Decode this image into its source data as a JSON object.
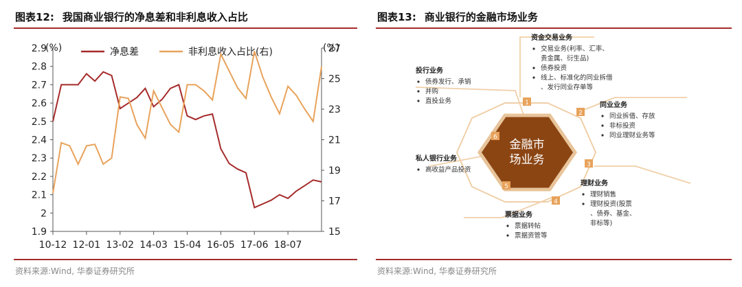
{
  "left_panel": {
    "figure_number": "图表12:",
    "figure_title": "我国商业银行的净息差和非利息收入占比",
    "source": "资料来源:Wind, 华泰证券研究所"
  },
  "right_panel": {
    "figure_number": "图表13:",
    "figure_title": "商业银行的金融市场业务",
    "source": "资料来源:Wind, 华泰证券研究所",
    "center_label": [
      "金融市",
      "场业务"
    ],
    "colors": {
      "hex_fill": "#8b4513",
      "hex_border": "#e8c49a",
      "badge": "#e8a25a",
      "line": "#f0cfa8"
    },
    "segments": [
      {
        "num": "1",
        "title": "资金交易业务",
        "items": [
          "交易业务(利率、汇率、",
          "贵金属、衍生品)",
          "债券投资",
          "线上、标准化的同业拆借",
          "、发行同业存单等"
        ],
        "bullets": [
          true,
          false,
          true,
          true,
          false
        ]
      },
      {
        "num": "2",
        "title": "同业业务",
        "items": [
          "同业拆借、存放",
          "非标投资",
          "同业理财业务等"
        ],
        "bullets": [
          true,
          true,
          true
        ]
      },
      {
        "num": "3",
        "title": "理财业务",
        "items": [
          "理财销售",
          "理财投资(股票",
          "、债券、基金、",
          "非标等)"
        ],
        "bullets": [
          true,
          true,
          false,
          false
        ]
      },
      {
        "num": "4",
        "title": "票据业务",
        "items": [
          "票据转帖",
          "票据资管等"
        ],
        "bullets": [
          true,
          true
        ]
      },
      {
        "num": "5",
        "title": "私人银行业务",
        "items": [
          "高收益产品投资"
        ],
        "bullets": [
          true
        ]
      },
      {
        "num": "6",
        "title": "投行业务",
        "items": [
          "债券发行、承销",
          "并购",
          "直投业务"
        ],
        "bullets": [
          true,
          true,
          true
        ]
      }
    ]
  },
  "chart_data": {
    "type": "line",
    "title": "我国商业银行的净息差和非利息收入占比",
    "left_axis_unit": "(%)",
    "right_axis_unit": "(%)",
    "ylim_left": [
      1.9,
      2.9
    ],
    "ylim_right": [
      15,
      27
    ],
    "yticks_left": [
      "2.9",
      "2.8",
      "2.7",
      "2.6",
      "2.5",
      "2.4",
      "2.3",
      "2.2",
      "2.1",
      "2",
      "1.9"
    ],
    "yticks_right": [
      "27",
      "25",
      "23",
      "21",
      "19",
      "17",
      "15"
    ],
    "x_tick_labels": [
      "10-12",
      "12-01",
      "13-02",
      "14-03",
      "15-04",
      "16-05",
      "17-06",
      "18-07"
    ],
    "legend": [
      "净息差",
      "非利息收入占比(右)"
    ],
    "legend_position": "top",
    "colors": {
      "nim": "#a52a2a",
      "non_interest": "#e8a25a"
    },
    "series": [
      {
        "name": "净息差",
        "axis": "left",
        "values": [
          2.5,
          2.7,
          2.7,
          2.7,
          2.76,
          2.72,
          2.77,
          2.75,
          2.57,
          2.6,
          2.63,
          2.68,
          2.58,
          2.62,
          2.68,
          2.7,
          2.53,
          2.51,
          2.53,
          2.54,
          2.35,
          2.27,
          2.24,
          2.22,
          2.03,
          2.05,
          2.07,
          2.1,
          2.08,
          2.12,
          2.15,
          2.18,
          2.17
        ]
      },
      {
        "name": "非利息收入占比(右)",
        "axis": "right",
        "values": [
          17.5,
          20.8,
          20.6,
          19.4,
          20.6,
          20.7,
          19.4,
          19.8,
          23.8,
          23.7,
          22.0,
          21.1,
          24.2,
          23.1,
          22.0,
          21.5,
          24.6,
          24.6,
          24.2,
          23.6,
          26.6,
          25.5,
          24.4,
          23.7,
          26.8,
          25.1,
          23.8,
          22.7,
          24.5,
          23.9,
          23.0,
          22.2,
          25.8
        ]
      }
    ]
  }
}
